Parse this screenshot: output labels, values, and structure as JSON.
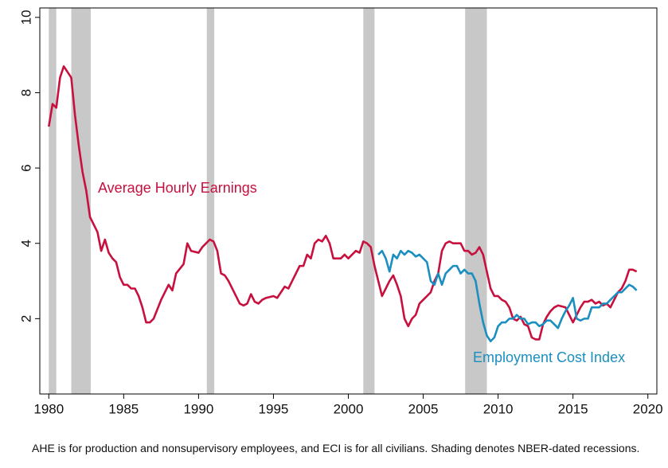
{
  "chart_data": {
    "type": "line",
    "note": "AHE is for production and nonsupervisory employees, and ECI is for all civilians. Shading denotes NBER-dated recessions.",
    "xlim": [
      1979.4,
      2020.6
    ],
    "xticks": [
      1980,
      1985,
      1990,
      1995,
      2000,
      2005,
      2010,
      2015,
      2020
    ],
    "ylim": [
      0,
      10.25
    ],
    "yticks": [
      2,
      4,
      6,
      8,
      10
    ],
    "recession_color": "#c8c8c8",
    "recessions": [
      [
        1980.0,
        1980.5
      ],
      [
        1981.5,
        1982.8
      ],
      [
        1990.55,
        1991.05
      ],
      [
        2001.0,
        2001.75
      ],
      [
        2007.8,
        2009.25
      ]
    ],
    "series": [
      {
        "name": "Average Hourly Earnings",
        "color": "#c8103e",
        "x": [
          1980.0,
          1980.25,
          1980.5,
          1980.75,
          1981.0,
          1981.25,
          1981.5,
          1981.75,
          1982.0,
          1982.25,
          1982.5,
          1982.75,
          1983.0,
          1983.25,
          1983.5,
          1983.75,
          1984.0,
          1984.25,
          1984.5,
          1984.75,
          1985.0,
          1985.25,
          1985.5,
          1985.75,
          1986.0,
          1986.25,
          1986.5,
          1986.75,
          1987.0,
          1987.5,
          1988.0,
          1988.25,
          1988.5,
          1989.0,
          1989.25,
          1989.5,
          1990.0,
          1990.25,
          1990.75,
          1991.0,
          1991.25,
          1991.5,
          1991.75,
          1992.0,
          1992.5,
          1992.75,
          1993.0,
          1993.25,
          1993.5,
          1993.75,
          1994.0,
          1994.25,
          1994.5,
          1995.0,
          1995.25,
          1995.5,
          1995.75,
          1996.0,
          1996.25,
          1996.75,
          1997.0,
          1997.25,
          1997.5,
          1997.75,
          1998.0,
          1998.25,
          1998.5,
          1998.75,
          1999.0,
          1999.5,
          1999.75,
          2000.0,
          2000.25,
          2000.5,
          2000.75,
          2001.0,
          2001.25,
          2001.5,
          2001.75,
          2002.0,
          2002.25,
          2002.5,
          2002.75,
          2003.0,
          2003.25,
          2003.5,
          2003.75,
          2004.0,
          2004.25,
          2004.5,
          2004.75,
          2005.0,
          2005.25,
          2005.5,
          2005.75,
          2006.0,
          2006.25,
          2006.5,
          2006.75,
          2007.0,
          2007.5,
          2007.75,
          2008.0,
          2008.25,
          2008.5,
          2008.75,
          2009.0,
          2009.25,
          2009.5,
          2009.75,
          2010.0,
          2010.25,
          2010.5,
          2010.75,
          2011.0,
          2011.25,
          2011.5,
          2011.75,
          2012.0,
          2012.25,
          2012.5,
          2012.75,
          2013.0,
          2013.25,
          2013.5,
          2013.75,
          2014.0,
          2014.5,
          2014.75,
          2015.0,
          2015.25,
          2015.5,
          2015.75,
          2016.0,
          2016.25,
          2016.5,
          2016.75,
          2017.0,
          2017.25,
          2017.5,
          2017.75,
          2018.0,
          2018.25,
          2018.5,
          2018.75,
          2019.0,
          2019.25
        ],
        "values": [
          7.1,
          7.7,
          7.6,
          8.4,
          8.7,
          8.55,
          8.4,
          7.4,
          6.6,
          5.9,
          5.4,
          4.7,
          4.5,
          4.3,
          3.8,
          4.1,
          3.75,
          3.6,
          3.5,
          3.1,
          2.9,
          2.9,
          2.8,
          2.8,
          2.6,
          2.3,
          1.9,
          1.9,
          2.0,
          2.5,
          2.9,
          2.75,
          3.2,
          3.45,
          4.0,
          3.8,
          3.75,
          3.9,
          4.1,
          4.05,
          3.8,
          3.2,
          3.15,
          3.0,
          2.6,
          2.4,
          2.35,
          2.4,
          2.65,
          2.45,
          2.4,
          2.5,
          2.55,
          2.6,
          2.55,
          2.7,
          2.85,
          2.8,
          3.0,
          3.4,
          3.4,
          3.7,
          3.6,
          4.0,
          4.1,
          4.05,
          4.2,
          4.0,
          3.6,
          3.6,
          3.7,
          3.6,
          3.7,
          3.8,
          3.75,
          4.05,
          4.0,
          3.9,
          3.4,
          3.0,
          2.6,
          2.8,
          3.0,
          3.15,
          2.9,
          2.6,
          2.0,
          1.8,
          2.0,
          2.1,
          2.4,
          2.5,
          2.6,
          2.7,
          3.0,
          3.2,
          3.8,
          4.0,
          4.05,
          4.0,
          4.0,
          3.8,
          3.8,
          3.7,
          3.75,
          3.9,
          3.7,
          3.25,
          2.8,
          2.6,
          2.6,
          2.5,
          2.45,
          2.3,
          2.0,
          1.95,
          2.05,
          1.85,
          1.8,
          1.5,
          1.45,
          1.45,
          1.85,
          2.05,
          2.2,
          2.3,
          2.35,
          2.3,
          2.1,
          1.9,
          2.1,
          2.3,
          2.45,
          2.45,
          2.5,
          2.4,
          2.45,
          2.35,
          2.4,
          2.3,
          2.5,
          2.7,
          2.8,
          3.0,
          3.3,
          3.3,
          3.25
        ]
      },
      {
        "name": "Employment Cost Index",
        "color": "#1a8fc0",
        "x": [
          2002.0,
          2002.25,
          2002.5,
          2002.75,
          2003.0,
          2003.25,
          2003.5,
          2003.75,
          2004.0,
          2004.25,
          2004.5,
          2004.75,
          2005.0,
          2005.25,
          2005.5,
          2005.75,
          2006.0,
          2006.25,
          2006.5,
          2006.75,
          2007.0,
          2007.25,
          2007.5,
          2007.75,
          2008.0,
          2008.25,
          2008.5,
          2008.75,
          2009.0,
          2009.25,
          2009.5,
          2009.75,
          2010.0,
          2010.25,
          2010.5,
          2010.75,
          2011.0,
          2011.25,
          2011.5,
          2011.75,
          2012.0,
          2012.25,
          2012.5,
          2012.75,
          2013.0,
          2013.25,
          2013.5,
          2013.75,
          2014.0,
          2014.25,
          2014.5,
          2014.75,
          2015.0,
          2015.25,
          2015.5,
          2015.75,
          2016.0,
          2016.25,
          2016.5,
          2016.75,
          2017.0,
          2017.25,
          2017.5,
          2017.75,
          2018.0,
          2018.25,
          2018.5,
          2018.75,
          2019.0,
          2019.25
        ],
        "values": [
          3.7,
          3.8,
          3.6,
          3.25,
          3.7,
          3.6,
          3.8,
          3.7,
          3.8,
          3.75,
          3.65,
          3.7,
          3.6,
          3.5,
          3.0,
          2.9,
          3.2,
          2.9,
          3.2,
          3.3,
          3.4,
          3.4,
          3.2,
          3.3,
          3.2,
          3.2,
          3.0,
          2.4,
          1.9,
          1.55,
          1.4,
          1.5,
          1.8,
          1.9,
          1.9,
          2.0,
          2.0,
          2.1,
          2.0,
          2.0,
          1.85,
          1.9,
          1.9,
          1.8,
          1.85,
          1.95,
          1.95,
          1.85,
          1.75,
          2.0,
          2.2,
          2.35,
          2.55,
          2.0,
          1.95,
          2.0,
          2.0,
          2.3,
          2.3,
          2.3,
          2.4,
          2.4,
          2.5,
          2.6,
          2.7,
          2.7,
          2.8,
          2.9,
          2.85,
          2.75
        ]
      }
    ]
  }
}
